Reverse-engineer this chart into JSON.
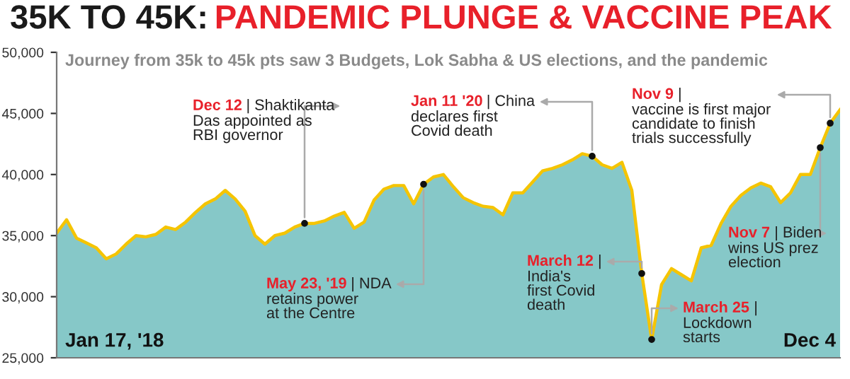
{
  "chart_data": {
    "type": "area",
    "title": "35K TO 45K: PANDEMIC PLUNGE & VACCINE PEAK",
    "subtitle": "Journey from 35k to 45k pts saw 3 Budgets, Lok Sabha & US elections, and the pandemic",
    "categories": [
      null,
      null,
      null,
      null,
      null,
      null,
      null,
      null,
      null,
      null,
      null,
      null,
      null,
      null,
      null,
      null,
      null,
      null,
      null,
      null,
      null,
      null,
      null,
      null,
      null,
      null,
      null,
      null,
      null,
      null,
      null,
      null,
      null,
      null,
      null,
      null,
      null,
      null,
      null,
      null,
      null,
      null,
      null,
      null,
      null,
      null,
      null,
      null,
      null,
      null,
      null,
      null,
      null,
      null,
      null,
      null,
      null,
      null,
      null,
      null,
      null,
      null,
      null,
      null,
      null,
      null,
      null,
      null,
      null,
      null,
      null,
      null,
      null,
      null,
      null,
      null,
      null,
      null,
      null,
      null
    ],
    "series": [
      {
        "color": "#86c8c8",
        "values": [
          35200,
          36300,
          34800,
          34400,
          34000,
          33100,
          33500,
          34300,
          35000,
          34900,
          35100,
          35700,
          35500,
          36100,
          36900,
          37600,
          38000,
          38700,
          38000,
          37000,
          35000,
          34300,
          35000,
          35200,
          35700,
          36000,
          36000,
          36200,
          36600,
          36900,
          35600,
          36100,
          37900,
          38800,
          39100,
          39100,
          37600,
          39200,
          39800,
          40000,
          39000,
          38100,
          37700,
          37400,
          37300,
          36700,
          38500,
          38500,
          39400,
          40300,
          40500,
          40800,
          41200,
          41700,
          41500,
          40800,
          40500,
          41000,
          38700,
          31900,
          26500,
          31000,
          32300,
          31800,
          31300,
          34000,
          34200,
          36000,
          37400,
          38300,
          38900,
          39300,
          39000,
          37700,
          38500,
          40000,
          40000,
          42200,
          44200,
          45300
        ]
      },
      {
        "type": "line",
        "color": "#f5c400",
        "values": [
          35200,
          36300,
          34800,
          34400,
          34000,
          33100,
          33500,
          34300,
          35000,
          34900,
          35100,
          35700,
          35500,
          36100,
          36900,
          37600,
          38000,
          38700,
          38000,
          37000,
          35000,
          34300,
          35000,
          35200,
          35700,
          36000,
          36000,
          36200,
          36600,
          36900,
          35600,
          36100,
          37900,
          38800,
          39100,
          39100,
          37600,
          39200,
          39800,
          40000,
          39000,
          38100,
          37700,
          37400,
          37300,
          36700,
          38500,
          38500,
          39400,
          40300,
          40500,
          40800,
          41200,
          41700,
          41500,
          40800,
          40500,
          41000,
          38700,
          31900,
          26500,
          31000,
          32300,
          31800,
          31300,
          34000,
          34200,
          36000,
          37400,
          38300,
          38900,
          39300,
          39000,
          37700,
          38500,
          40000,
          40000,
          42200,
          44200,
          45300
        ]
      }
    ],
    "ylim": [
      25000,
      50000
    ],
    "yticks": [
      {
        "value": 25000,
        "label": "25,000"
      },
      {
        "value": 30000,
        "label": "30,000"
      },
      {
        "value": 35000,
        "label": "35,000"
      },
      {
        "value": 40000,
        "label": "40,000"
      },
      {
        "value": 45000,
        "label": "45,000"
      },
      {
        "value": 50000,
        "label": "50,000"
      }
    ],
    "tick_labels": "y",
    "annotations": [
      "Dec 12 | Shaktikanta\nDas appointed as\nRBI governor",
      "May 23, '19 | NDA\nretains power\nat the Centre",
      "Jan 11 '20 | China\ndeclares first\nCovid death",
      "March 12 |\nIndia's\nfirst Covid\ndeath",
      "March 25 |\nLockdown\nstarts",
      "Nov 7 | Biden\nwins US prez\nelection",
      "Nov 9 |\nvaccine is first major\ncandidate to finish\ntrials successfully",
      "Jan 17, '18",
      "Dec 4"
    ]
  }
}
